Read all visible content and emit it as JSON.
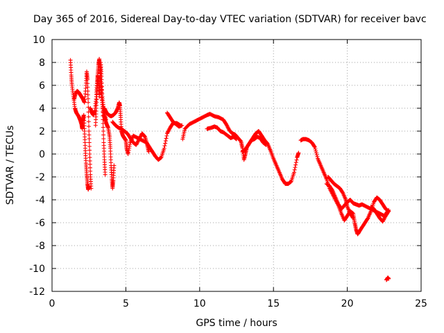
{
  "chart_data": {
    "type": "scatter",
    "title": "Day 365 of 2016, Sidereal Day-to-day VTEC variation (SDTVAR) for receiver bavc",
    "xlabel": "GPS time / hours",
    "ylabel": "SDTVAR / TECUs",
    "xlim": [
      0,
      25
    ],
    "ylim": [
      -12,
      10
    ],
    "xticks": [
      0,
      5,
      10,
      15,
      20,
      25
    ],
    "yticks": [
      -12,
      -10,
      -8,
      -6,
      -4,
      -2,
      0,
      2,
      4,
      6,
      8,
      10
    ],
    "grid": true,
    "marker": "+",
    "color": "#ff0000",
    "series": [
      {
        "name": "SDTVAR",
        "segments": [
          [
            [
              1.25,
              8.2
            ],
            [
              1.3,
              6.9
            ],
            [
              1.35,
              6.0
            ],
            [
              1.45,
              5.0
            ],
            [
              1.55,
              4.0
            ],
            [
              1.65,
              3.6
            ],
            [
              1.8,
              3.3
            ],
            [
              1.9,
              3.0
            ],
            [
              2.0,
              2.6
            ],
            [
              2.05,
              2.2
            ],
            [
              2.1,
              3.0
            ],
            [
              2.15,
              3.4
            ],
            [
              2.2,
              2.0
            ],
            [
              2.25,
              0.5
            ],
            [
              2.3,
              -0.8
            ],
            [
              2.35,
              -1.8
            ],
            [
              2.4,
              -2.6
            ],
            [
              2.45,
              -3.1
            ],
            [
              2.5,
              -2.8
            ]
          ],
          [
            [
              1.5,
              4.8
            ],
            [
              1.6,
              5.3
            ],
            [
              1.7,
              5.5
            ],
            [
              1.8,
              5.4
            ],
            [
              1.9,
              5.2
            ],
            [
              2.0,
              5.0
            ],
            [
              2.1,
              4.8
            ],
            [
              2.2,
              4.5
            ],
            [
              2.3,
              6.0
            ],
            [
              2.35,
              7.2
            ],
            [
              2.4,
              6.5
            ],
            [
              2.45,
              4.5
            ],
            [
              2.5,
              2.0
            ],
            [
              2.55,
              0.0
            ],
            [
              2.6,
              -1.8
            ],
            [
              2.65,
              -3.0
            ]
          ],
          [
            [
              2.6,
              4.0
            ],
            [
              2.7,
              3.6
            ],
            [
              2.8,
              3.4
            ],
            [
              2.9,
              3.8
            ],
            [
              3.0,
              5.0
            ],
            [
              3.05,
              6.2
            ],
            [
              3.1,
              7.0
            ],
            [
              3.15,
              7.8
            ],
            [
              3.2,
              8.3
            ],
            [
              3.25,
              7.5
            ],
            [
              3.3,
              6.5
            ],
            [
              3.35,
              5.5
            ],
            [
              3.45,
              4.5
            ],
            [
              3.55,
              3.5
            ],
            [
              3.65,
              3.0
            ]
          ],
          [
            [
              2.95,
              2.5
            ],
            [
              3.0,
              4.0
            ],
            [
              3.05,
              5.5
            ],
            [
              3.1,
              6.8
            ],
            [
              3.15,
              6.2
            ],
            [
              3.2,
              5.0
            ],
            [
              3.25,
              6.6
            ],
            [
              3.3,
              8.0
            ],
            [
              3.35,
              6.8
            ],
            [
              3.4,
              5.0
            ],
            [
              3.45,
              3.0
            ],
            [
              3.5,
              1.0
            ],
            [
              3.55,
              -0.5
            ],
            [
              3.6,
              -1.8
            ]
          ],
          [
            [
              3.3,
              5.8
            ],
            [
              3.4,
              4.5
            ],
            [
              3.5,
              3.4
            ],
            [
              3.6,
              3.0
            ],
            [
              3.7,
              2.6
            ],
            [
              3.8,
              2.3
            ],
            [
              3.9,
              1.5
            ],
            [
              3.95,
              0.5
            ],
            [
              4.0,
              -1.0
            ],
            [
              4.05,
              -2.2
            ],
            [
              4.1,
              -3.0
            ],
            [
              4.15,
              -2.3
            ],
            [
              4.2,
              -1.0
            ]
          ],
          [
            [
              3.55,
              4.0
            ],
            [
              3.7,
              3.6
            ],
            [
              3.85,
              3.4
            ],
            [
              4.0,
              3.3
            ],
            [
              4.15,
              3.4
            ],
            [
              4.3,
              3.6
            ],
            [
              4.45,
              4.0
            ],
            [
              4.55,
              4.5
            ],
            [
              4.6,
              4.2
            ],
            [
              4.65,
              3.2
            ],
            [
              4.7,
              2.0
            ],
            [
              4.8,
              1.6
            ],
            [
              4.9,
              1.4
            ],
            [
              5.0,
              1.2
            ],
            [
              5.05,
              0.5
            ],
            [
              5.15,
              0.0
            ],
            [
              5.3,
              1.0
            ],
            [
              5.5,
              1.6
            ],
            [
              5.8,
              1.4
            ],
            [
              6.1,
              1.2
            ],
            [
              6.4,
              1.0
            ],
            [
              6.6,
              0.6
            ],
            [
              6.8,
              0.2
            ],
            [
              7.0,
              -0.2
            ],
            [
              7.2,
              -0.5
            ],
            [
              7.4,
              -0.3
            ],
            [
              7.6,
              0.5
            ],
            [
              7.8,
              1.8
            ],
            [
              8.0,
              2.3
            ],
            [
              8.2,
              2.7
            ],
            [
              8.45,
              2.7
            ],
            [
              8.7,
              2.5
            ]
          ],
          [
            [
              4.1,
              2.8
            ],
            [
              4.3,
              2.5
            ],
            [
              4.5,
              2.3
            ],
            [
              4.7,
              2.2
            ],
            [
              4.9,
              2.0
            ],
            [
              5.1,
              1.8
            ],
            [
              5.3,
              1.4
            ],
            [
              5.5,
              1.0
            ],
            [
              5.7,
              0.8
            ],
            [
              5.9,
              1.3
            ],
            [
              6.1,
              1.8
            ],
            [
              6.3,
              1.5
            ],
            [
              6.45,
              0.8
            ],
            [
              6.55,
              0.2
            ]
          ],
          [
            [
              7.8,
              3.6
            ],
            [
              8.0,
              3.2
            ],
            [
              8.2,
              2.8
            ],
            [
              8.4,
              2.6
            ],
            [
              8.6,
              2.4
            ],
            [
              8.8,
              2.5
            ]
          ],
          [
            [
              8.85,
              1.3
            ],
            [
              9.0,
              2.2
            ],
            [
              9.3,
              2.6
            ],
            [
              9.6,
              2.8
            ],
            [
              9.9,
              3.0
            ],
            [
              10.2,
              3.2
            ],
            [
              10.5,
              3.4
            ],
            [
              10.7,
              3.5
            ],
            [
              11.0,
              3.3
            ],
            [
              11.3,
              3.2
            ],
            [
              11.6,
              3.0
            ],
            [
              11.8,
              2.6
            ],
            [
              12.0,
              2.1
            ],
            [
              12.2,
              1.8
            ],
            [
              12.4,
              1.7
            ],
            [
              12.6,
              1.4
            ],
            [
              12.8,
              1.1
            ],
            [
              12.9,
              0.5
            ],
            [
              13.0,
              -0.5
            ],
            [
              13.1,
              0.0
            ],
            [
              13.2,
              0.6
            ],
            [
              13.4,
              1.0
            ],
            [
              13.6,
              1.4
            ],
            [
              13.8,
              1.8
            ],
            [
              14.0,
              2.0
            ],
            [
              14.2,
              1.6
            ],
            [
              14.4,
              1.2
            ],
            [
              14.6,
              0.9
            ],
            [
              14.8,
              0.3
            ],
            [
              15.0,
              -0.4
            ],
            [
              15.2,
              -1.0
            ],
            [
              15.4,
              -1.6
            ],
            [
              15.6,
              -2.2
            ],
            [
              15.8,
              -2.6
            ],
            [
              16.0,
              -2.6
            ],
            [
              16.2,
              -2.4
            ],
            [
              16.4,
              -1.6
            ],
            [
              16.6,
              -0.3
            ],
            [
              16.7,
              0.1
            ]
          ],
          [
            [
              10.5,
              2.2
            ],
            [
              10.8,
              2.3
            ],
            [
              11.0,
              2.4
            ],
            [
              11.2,
              2.3
            ],
            [
              11.4,
              2.0
            ],
            [
              11.6,
              1.9
            ],
            [
              11.9,
              1.6
            ],
            [
              12.1,
              1.4
            ],
            [
              12.3,
              1.5
            ],
            [
              12.5,
              1.3
            ]
          ],
          [
            [
              12.9,
              0.2
            ],
            [
              13.1,
              0.4
            ],
            [
              13.3,
              0.8
            ],
            [
              13.5,
              1.2
            ],
            [
              13.7,
              1.3
            ],
            [
              13.9,
              1.5
            ],
            [
              14.1,
              1.4
            ],
            [
              14.3,
              1.0
            ],
            [
              14.5,
              0.8
            ]
          ],
          [
            [
              16.85,
              1.2
            ],
            [
              17.0,
              1.3
            ],
            [
              17.2,
              1.3
            ],
            [
              17.4,
              1.2
            ],
            [
              17.6,
              1.0
            ],
            [
              17.8,
              0.6
            ],
            [
              18.0,
              -0.4
            ],
            [
              18.2,
              -1.0
            ],
            [
              18.4,
              -1.6
            ],
            [
              18.6,
              -2.2
            ],
            [
              18.8,
              -3.0
            ],
            [
              19.0,
              -3.5
            ],
            [
              19.2,
              -4.0
            ],
            [
              19.4,
              -4.5
            ],
            [
              19.6,
              -5.2
            ],
            [
              19.8,
              -5.8
            ],
            [
              20.0,
              -5.4
            ],
            [
              20.2,
              -5.0
            ],
            [
              20.4,
              -5.2
            ],
            [
              20.5,
              -6.0
            ],
            [
              20.6,
              -6.6
            ],
            [
              20.7,
              -7.0
            ],
            [
              20.8,
              -6.8
            ],
            [
              21.0,
              -6.4
            ],
            [
              21.2,
              -6.0
            ],
            [
              21.4,
              -5.6
            ],
            [
              21.6,
              -5.0
            ],
            [
              21.8,
              -4.2
            ],
            [
              22.0,
              -3.8
            ],
            [
              22.2,
              -4.0
            ],
            [
              22.4,
              -4.4
            ],
            [
              22.6,
              -4.8
            ],
            [
              22.8,
              -5.0
            ]
          ],
          [
            [
              18.6,
              -2.6
            ],
            [
              18.8,
              -2.8
            ],
            [
              19.0,
              -3.2
            ],
            [
              19.2,
              -3.8
            ],
            [
              19.4,
              -4.4
            ],
            [
              19.6,
              -4.8
            ],
            [
              19.8,
              -4.5
            ],
            [
              20.0,
              -4.2
            ],
            [
              20.2,
              -4.0
            ],
            [
              20.4,
              -4.3
            ],
            [
              20.6,
              -4.4
            ],
            [
              20.8,
              -4.5
            ],
            [
              21.0,
              -4.4
            ],
            [
              21.3,
              -4.6
            ],
            [
              21.6,
              -4.8
            ],
            [
              21.9,
              -5.0
            ],
            [
              22.2,
              -5.2
            ],
            [
              22.5,
              -5.4
            ],
            [
              22.8,
              -4.9
            ]
          ],
          [
            [
              18.7,
              -2.0
            ],
            [
              18.9,
              -2.3
            ],
            [
              19.1,
              -2.6
            ],
            [
              19.3,
              -2.8
            ],
            [
              19.5,
              -3.0
            ],
            [
              19.7,
              -3.4
            ],
            [
              19.9,
              -4.0
            ],
            [
              20.0,
              -4.6
            ],
            [
              20.2,
              -5.2
            ],
            [
              20.4,
              -5.6
            ]
          ],
          [
            [
              21.6,
              -4.6
            ],
            [
              21.8,
              -4.8
            ],
            [
              22.0,
              -5.2
            ],
            [
              22.2,
              -5.6
            ],
            [
              22.4,
              -5.9
            ],
            [
              22.6,
              -5.4
            ],
            [
              22.8,
              -5.0
            ]
          ],
          [
            [
              22.65,
              -11.0
            ],
            [
              22.75,
              -10.8
            ],
            [
              22.8,
              -10.9
            ]
          ]
        ]
      }
    ]
  }
}
